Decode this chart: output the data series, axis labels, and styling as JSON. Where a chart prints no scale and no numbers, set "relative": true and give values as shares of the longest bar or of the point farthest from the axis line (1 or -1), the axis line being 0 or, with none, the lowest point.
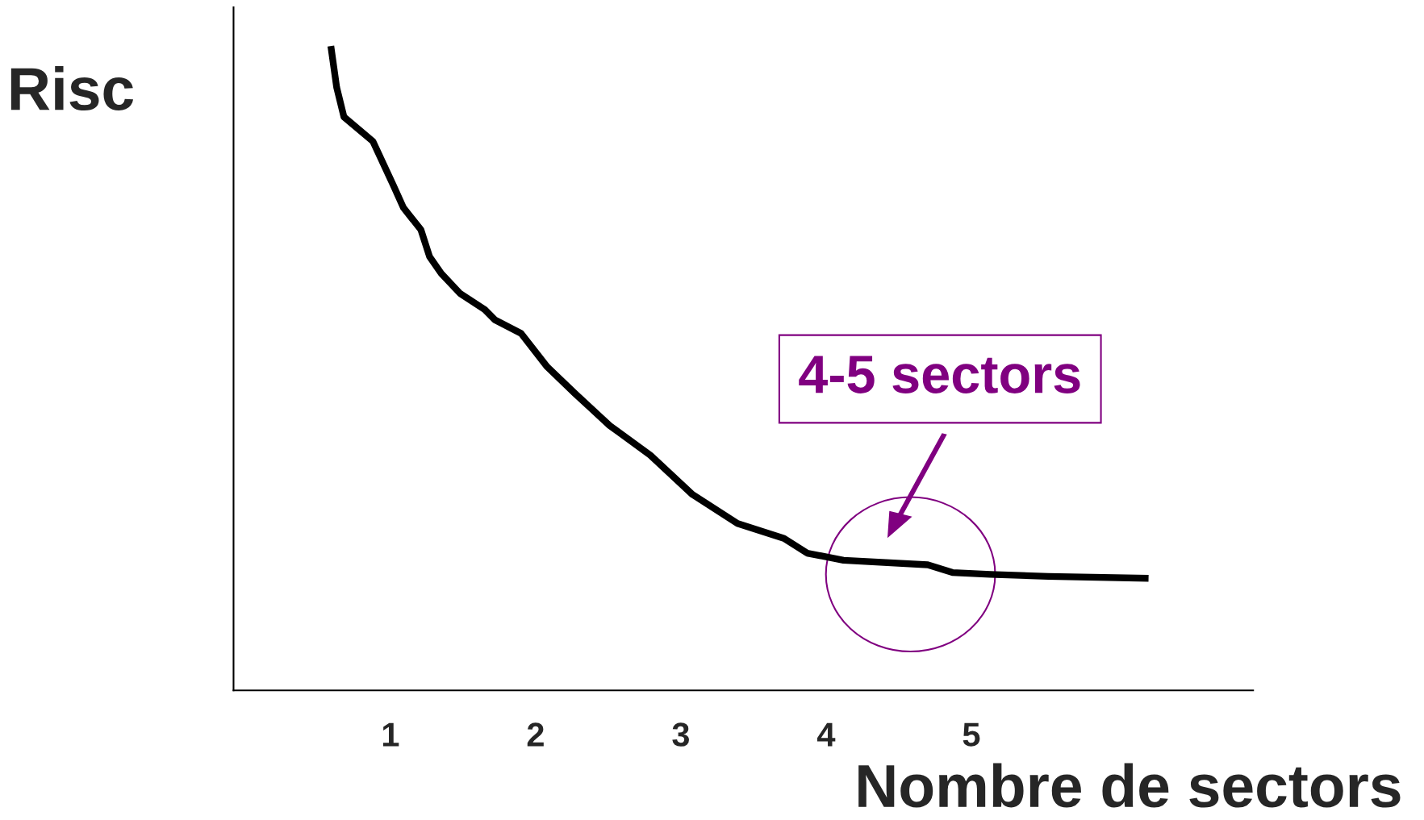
{
  "chart_data": {
    "type": "line",
    "relative": true,
    "xlabel": "Nombre de sectors",
    "ylabel": "Risc",
    "xlim": [
      -0.08,
      6.94
    ],
    "xticks": [
      1,
      2,
      3,
      4,
      5
    ],
    "tick_labels": "x",
    "grid": false,
    "legend": false,
    "marker": "none",
    "line_style": "solid",
    "series": [
      {
        "color": "#000000",
        "x": [
          0.59,
          0.63,
          0.68,
          0.88,
          1.02,
          1.09,
          1.21,
          1.27,
          1.35,
          1.48,
          1.65,
          1.72,
          1.9,
          2.08,
          2.27,
          2.51,
          2.79,
          3.08,
          3.39,
          3.71,
          3.87,
          4.12,
          4.7,
          4.87,
          5.13,
          5.53,
          6.22
        ],
        "values": [
          1.0,
          0.936,
          0.89,
          0.852,
          0.784,
          0.749,
          0.715,
          0.673,
          0.647,
          0.616,
          0.591,
          0.575,
          0.554,
          0.502,
          0.461,
          0.411,
          0.365,
          0.304,
          0.259,
          0.236,
          0.213,
          0.202,
          0.195,
          0.183,
          0.18,
          0.177,
          0.174
        ]
      }
    ],
    "annotations": [
      "4-5 sectors"
    ]
  }
}
